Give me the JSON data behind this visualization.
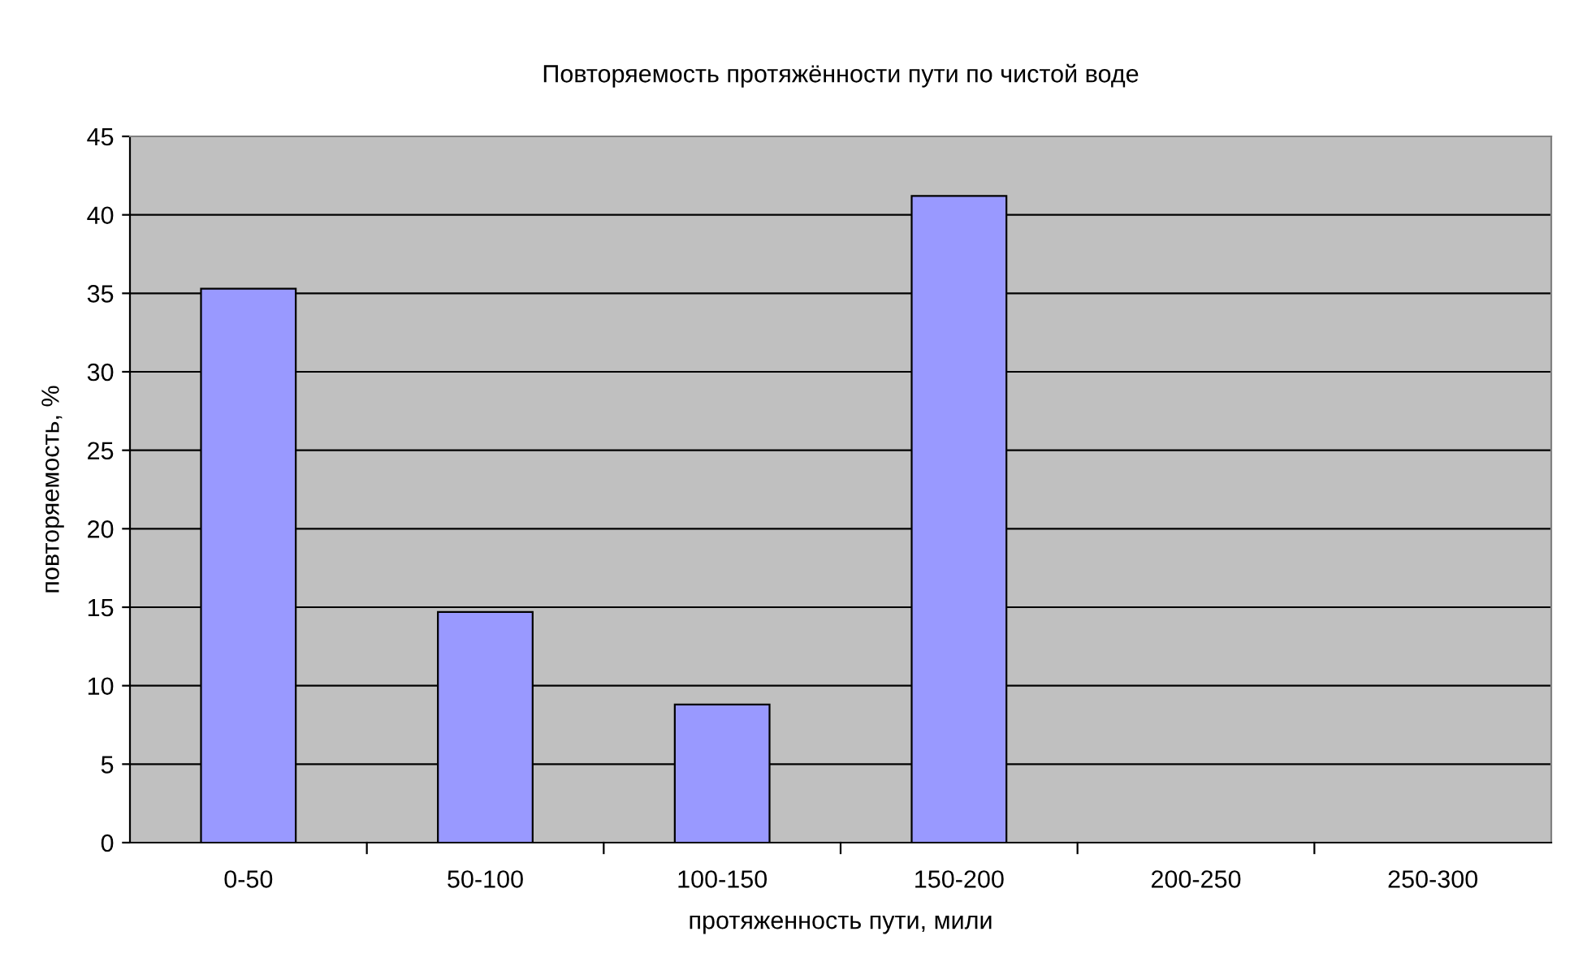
{
  "chart_data": {
    "type": "bar",
    "title": "Повторяемость протяжённости пути по чистой воде",
    "xlabel": "протяженность пути, мили",
    "ylabel": "повторяемость, %",
    "categories": [
      "0-50",
      "50-100",
      "100-150",
      "150-200",
      "200-250",
      "250-300"
    ],
    "values": [
      35.3,
      14.7,
      8.8,
      41.2,
      null,
      null
    ],
    "color": "#9999ff",
    "ylim": [
      0,
      45
    ],
    "yticks": [
      0,
      5,
      10,
      15,
      20,
      25,
      30,
      35,
      40,
      45
    ],
    "grid": "y",
    "legend": false
  }
}
